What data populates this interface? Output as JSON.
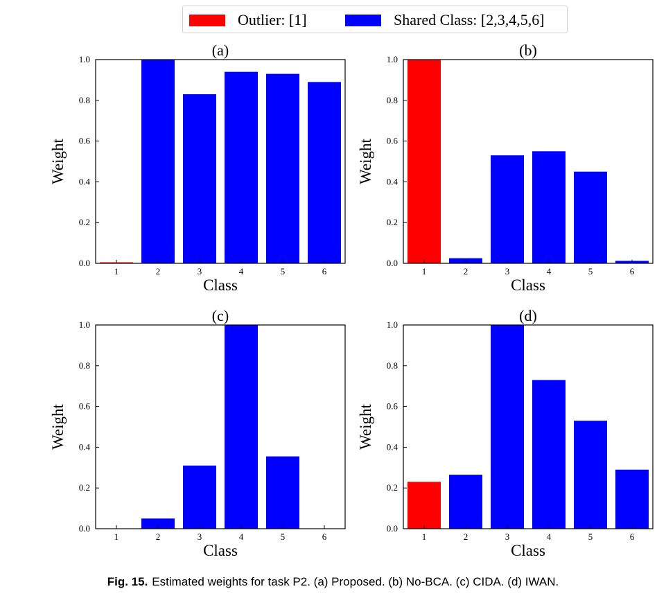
{
  "legend": {
    "items": [
      {
        "label": "Outlier: [1]",
        "color": "#ff0000"
      },
      {
        "label": "Shared Class: [2,3,4,5,6]",
        "color": "#0000ff"
      }
    ]
  },
  "caption": {
    "label": "Fig. 15.",
    "text": "Estimated weights for task P2. (a) Proposed. (b) No-BCA. (c) CIDA. (d) IWAN."
  },
  "colors": {
    "outlier": "#ff0000",
    "shared": "#0000ff"
  },
  "chart_data": [
    {
      "type": "bar",
      "title": "(a)",
      "xlabel": "Class",
      "ylabel": "Weight",
      "categories": [
        "1",
        "2",
        "3",
        "4",
        "5",
        "6"
      ],
      "values": [
        0.005,
        1.0,
        0.83,
        0.94,
        0.93,
        0.89
      ],
      "bar_colors": [
        "#ff0000",
        "#0000ff",
        "#0000ff",
        "#0000ff",
        "#0000ff",
        "#0000ff"
      ],
      "ylim": [
        0,
        1.0
      ],
      "yticks": [
        "0.0",
        "0.2",
        "0.4",
        "0.6",
        "0.8",
        "1.0"
      ]
    },
    {
      "type": "bar",
      "title": "(b)",
      "xlabel": "Class",
      "ylabel": "Weight",
      "categories": [
        "1",
        "2",
        "3",
        "4",
        "5",
        "6"
      ],
      "values": [
        1.0,
        0.025,
        0.53,
        0.55,
        0.45,
        0.012
      ],
      "bar_colors": [
        "#ff0000",
        "#0000ff",
        "#0000ff",
        "#0000ff",
        "#0000ff",
        "#0000ff"
      ],
      "ylim": [
        0,
        1.0
      ],
      "yticks": [
        "0.0",
        "0.2",
        "0.4",
        "0.6",
        "0.8",
        "1.0"
      ]
    },
    {
      "type": "bar",
      "title": "(c)",
      "xlabel": "Class",
      "ylabel": "Weight",
      "categories": [
        "1",
        "2",
        "3",
        "4",
        "5",
        "6"
      ],
      "values": [
        0.0,
        0.05,
        0.31,
        1.0,
        0.355,
        0.0
      ],
      "bar_colors": [
        "#ff0000",
        "#0000ff",
        "#0000ff",
        "#0000ff",
        "#0000ff",
        "#0000ff"
      ],
      "ylim": [
        0,
        1.0
      ],
      "yticks": [
        "0.0",
        "0.2",
        "0.4",
        "0.6",
        "0.8",
        "1.0"
      ]
    },
    {
      "type": "bar",
      "title": "(d)",
      "xlabel": "Class",
      "ylabel": "Weight",
      "categories": [
        "1",
        "2",
        "3",
        "4",
        "5",
        "6"
      ],
      "values": [
        0.23,
        0.265,
        1.0,
        0.73,
        0.53,
        0.29
      ],
      "bar_colors": [
        "#ff0000",
        "#0000ff",
        "#0000ff",
        "#0000ff",
        "#0000ff",
        "#0000ff"
      ],
      "ylim": [
        0,
        1.0
      ],
      "yticks": [
        "0.0",
        "0.2",
        "0.4",
        "0.6",
        "0.8",
        "1.0"
      ]
    }
  ]
}
